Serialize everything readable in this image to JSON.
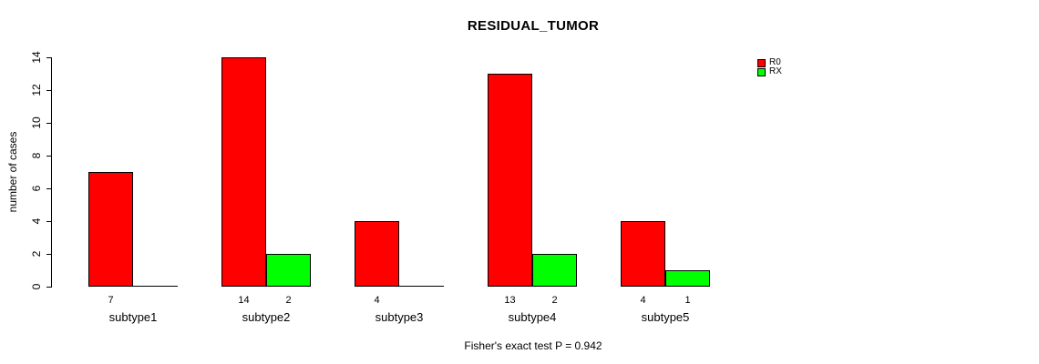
{
  "chart_data": {
    "type": "bar",
    "title": "RESIDUAL_TUMOR",
    "categories": [
      "subtype1",
      "subtype2",
      "subtype3",
      "subtype4",
      "subtype5"
    ],
    "series": [
      {
        "name": "R0",
        "color": "#FF0000",
        "values": [
          7,
          14,
          4,
          13,
          4
        ]
      },
      {
        "name": "RX",
        "color": "#00FF00",
        "values": [
          0,
          2,
          0,
          2,
          1
        ]
      }
    ],
    "bar_labels": [
      [
        "7",
        ""
      ],
      [
        "14",
        "2"
      ],
      [
        "4",
        ""
      ],
      [
        "13",
        "2"
      ],
      [
        "4",
        "1"
      ]
    ],
    "ylabel": "number of cases",
    "xlabel": "",
    "ylim": [
      0,
      14
    ],
    "yticks": [
      0,
      2,
      4,
      6,
      8,
      10,
      12,
      14
    ],
    "grid": false,
    "legend_position": "top-right",
    "annotation": "Fisher's exact test P = 0.942"
  },
  "colors": {
    "r0": "#FF0000",
    "rx": "#00FF00",
    "axis": "#000000",
    "text": "#000000",
    "background": "#FFFFFF"
  }
}
